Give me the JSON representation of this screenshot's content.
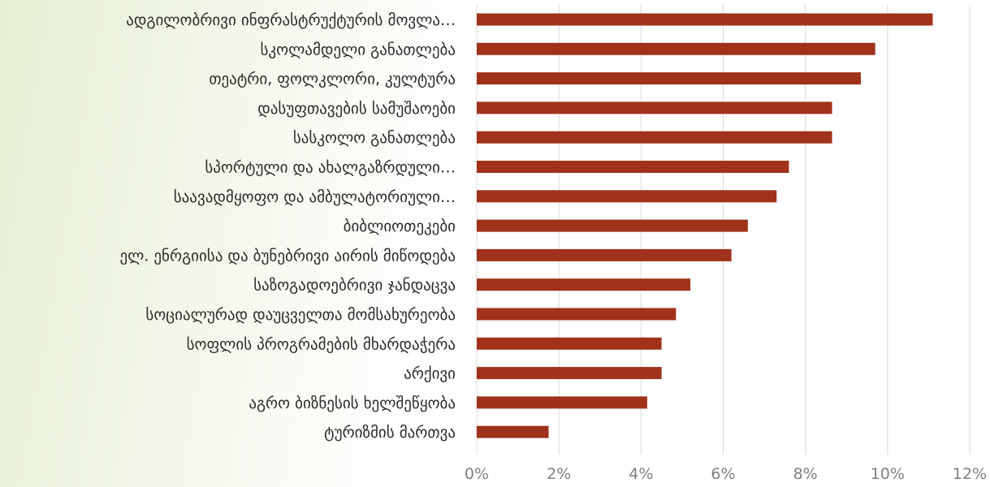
{
  "chart_data": {
    "type": "bar",
    "orientation": "horizontal",
    "categories": [
      "ადგილობრივი ინფრასტრუქტურის მოვლა…",
      "სკოლამდელი განათლება",
      "თეატრი, ფოლკლორი, კულტურა",
      "დასუფთავების სამუშაოები",
      "სასკოლო განათლება",
      "სპორტული და ახალგაზრდული…",
      "საავადმყოფო და ამბულატორიული…",
      "ბიბლიოთეკები",
      "ელ. ენრგიისა და ბუნებრივი აირის მიწოდება",
      "საზოგადოებრივი ჯანდაცვა",
      "სოციალურად დაუცველთა მომსახურეობა",
      "სოფლის პროგრამების მხარდაჭერა",
      "არქივი",
      "აგრო ბიზნესის ხელშეწყობა",
      "ტურიზმის მართვა"
    ],
    "values": [
      11.1,
      9.7,
      9.35,
      8.65,
      8.65,
      7.6,
      7.3,
      6.6,
      6.2,
      5.2,
      4.85,
      4.5,
      4.5,
      4.15,
      1.75
    ],
    "xlim": [
      0,
      12
    ],
    "xticks": [
      "0%",
      "2%",
      "4%",
      "6%",
      "8%",
      "10%",
      "12%"
    ],
    "bar_color": "#a0321c",
    "grid": true,
    "title": "",
    "xlabel": "",
    "ylabel": ""
  }
}
